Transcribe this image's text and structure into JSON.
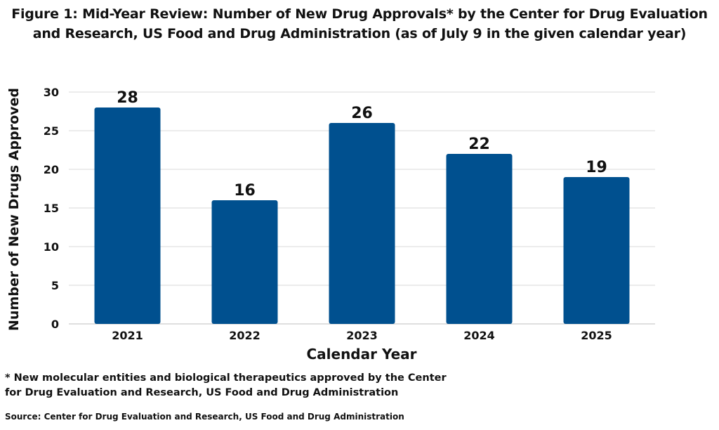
{
  "chart_data": {
    "type": "bar",
    "title": "Figure 1: Mid-Year Review: Number of New Drug Approvals* by the Center for Drug Evaluation and Research, US Food and Drug Administration (as of July 9 in the given calendar year)",
    "xlabel": "Calendar Year",
    "ylabel": "Number of New Drugs Approved",
    "categories": [
      "2021",
      "2022",
      "2023",
      "2024",
      "2025"
    ],
    "values": [
      28,
      16,
      26,
      22,
      19
    ],
    "ylim": [
      0,
      30
    ],
    "yticks": [
      0,
      5,
      10,
      15,
      20,
      25,
      30
    ],
    "grid": true,
    "legend": "none",
    "bar_color": "#00508f",
    "grid_color": "#d9d9d9"
  },
  "footnote": "* New molecular entities and biological therapeutics approved by the Center for Drug Evaluation and Research, US Food and Drug Administration",
  "source": "Source: Center for Drug Evaluation and Research, US Food and Drug Administration"
}
